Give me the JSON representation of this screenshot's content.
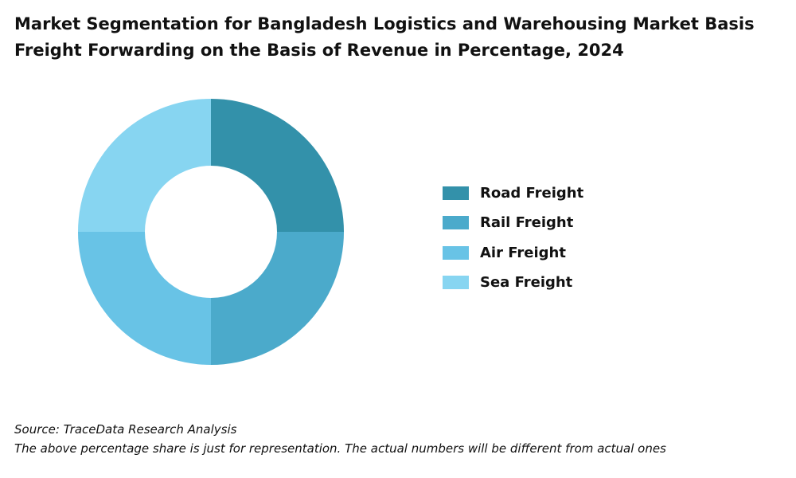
{
  "title": {
    "line1": "Market Segmentation for Bangladesh Logistics and Warehousing Market Basis",
    "line2": "Freight Forwarding on the Basis of Revenue in Percentage, 2024"
  },
  "footer": {
    "source": "Source: TraceData Research Analysis",
    "note": "The above percentage share is just for representation. The actual numbers will be different from actual ones"
  },
  "chart_data": {
    "type": "pie",
    "variant": "donut",
    "title": "Market Segmentation for Bangladesh Logistics and Warehousing Market Basis Freight Forwarding on the Basis of Revenue in Percentage, 2024",
    "categories": [
      "Road Freight",
      "Rail Freight",
      "Air Freight",
      "Sea Freight"
    ],
    "values": [
      25,
      25,
      25,
      25
    ],
    "colors": [
      "#3391aa",
      "#4baacb",
      "#68c3e6",
      "#87d5f1"
    ],
    "legend_position": "right",
    "data_labels": false
  }
}
